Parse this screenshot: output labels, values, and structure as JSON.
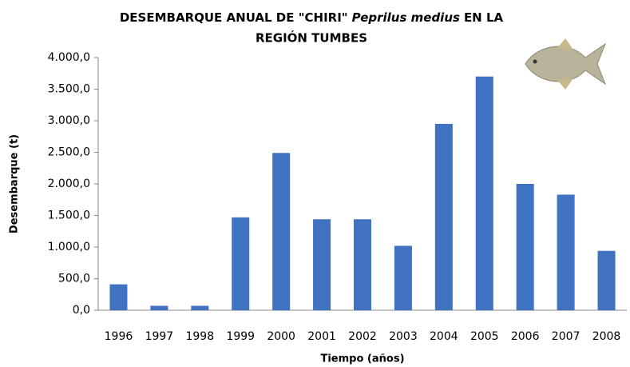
{
  "chart_data": {
    "type": "bar",
    "title": [
      "DESEMBARQUE ANUAL DE \"CHIRI\"",
      "Peprilus medius",
      "EN LA",
      "REGIÓN TUMBES"
    ],
    "x_label": "Tiempo (años)",
    "y_label": "Desembarque (t)",
    "categories": [
      "1996",
      "1997",
      "1998",
      "1999",
      "2000",
      "2001",
      "2002",
      "2003",
      "2004",
      "2005",
      "2006",
      "2007",
      "2008"
    ],
    "values": [
      410,
      70,
      70,
      1470,
      2490,
      1440,
      1440,
      1020,
      2950,
      3700,
      2000,
      1830,
      940
    ],
    "color": "#3f73c2",
    "ylim": [
      0,
      4000
    ],
    "yticks": [
      {
        "value": 0,
        "label": "0,0"
      },
      {
        "value": 500,
        "label": "500,0"
      },
      {
        "value": 1000,
        "label": "1.000,0"
      },
      {
        "value": 1500,
        "label": "1.500,0"
      },
      {
        "value": 2000,
        "label": "2.000,0"
      },
      {
        "value": 2500,
        "label": "2.500,0"
      },
      {
        "value": 3000,
        "label": "3.000,0"
      },
      {
        "value": 3500,
        "label": "3.500,0"
      },
      {
        "value": 4000,
        "label": "4.000,0"
      }
    ],
    "grid": false
  }
}
